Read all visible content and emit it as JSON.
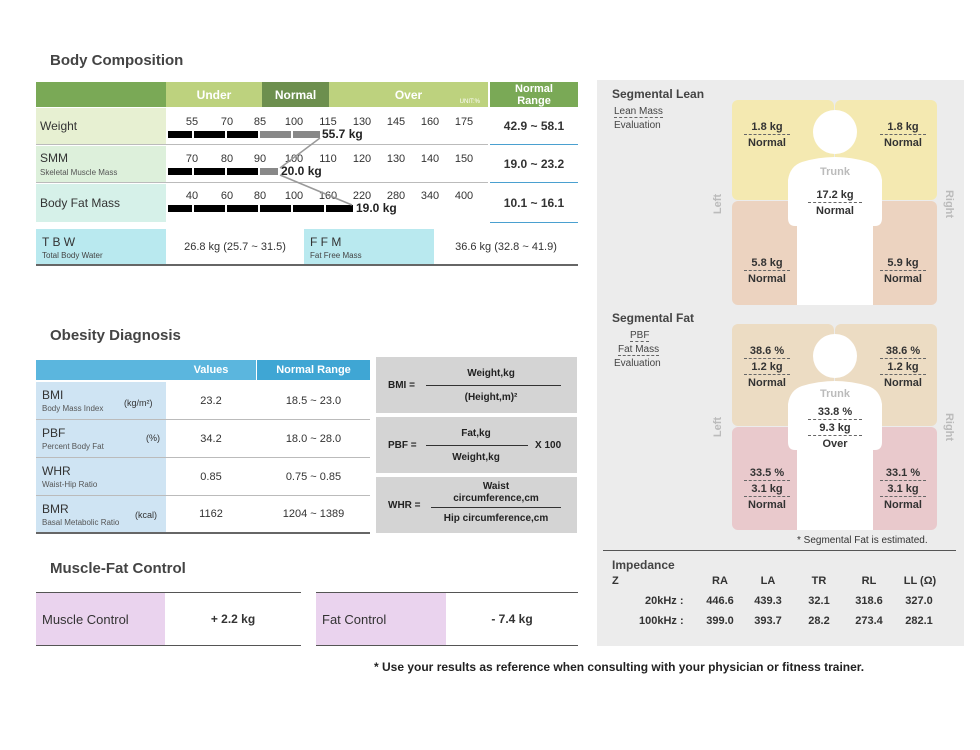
{
  "body_composition": {
    "title": "Body Composition",
    "headers": {
      "under": "Under",
      "normal": "Normal",
      "over": "Over",
      "unit": "UNIT:%",
      "normal_range": "Normal Range"
    },
    "rows": [
      {
        "label": "Weight",
        "sub": "",
        "ticks": [
          "55",
          "70",
          "85",
          "100",
          "115",
          "130",
          "145",
          "160",
          "175"
        ],
        "value": "55.7 kg",
        "range": "42.9 ~ 58.1"
      },
      {
        "label": "SMM",
        "sub": "Skeletal Muscle Mass",
        "ticks": [
          "70",
          "80",
          "90",
          "100",
          "110",
          "120",
          "130",
          "140",
          "150"
        ],
        "value": "20.0 kg",
        "range": "19.0 ~ 23.2"
      },
      {
        "label": "Body Fat Mass",
        "sub": "",
        "ticks": [
          "40",
          "60",
          "80",
          "100",
          "160",
          "220",
          "280",
          "340",
          "400"
        ],
        "value": "19.0 kg",
        "range": "10.1 ~ 16.1"
      }
    ],
    "tbw": {
      "label": "T B W",
      "sub": "Total Body Water",
      "value": "26.8 kg (25.7 ~ 31.5)"
    },
    "ffm": {
      "label": "F F M",
      "sub": "Fat Free Mass",
      "value": "36.6 kg (32.8 ~ 41.9)"
    }
  },
  "obesity": {
    "title": "Obesity Diagnosis",
    "headers": {
      "values": "Values",
      "range": "Normal Range"
    },
    "rows": [
      {
        "label": "BMI",
        "sub": "Body Mass Index",
        "unit": "(kg/m²)",
        "value": "23.2",
        "range": "18.5 ~ 23.0"
      },
      {
        "label": "PBF",
        "sub": "Percent Body Fat",
        "unit": "(%)",
        "value": "34.2",
        "range": "18.0 ~ 28.0"
      },
      {
        "label": "WHR",
        "sub": "Waist-Hip Ratio",
        "unit": "",
        "value": "0.85",
        "range": "0.75 ~ 0.85"
      },
      {
        "label": "BMR",
        "sub": "Basal Metabolic Ratio",
        "unit": "(kcal)",
        "value": "1162",
        "range": "1204 ~ 1389"
      }
    ]
  },
  "formulas": {
    "bmi": {
      "label": "BMI =",
      "num": "Weight,kg",
      "den": "(Height,m)²"
    },
    "pbf": {
      "label": "PBF =",
      "num": "Fat,kg",
      "den": "Weight,kg",
      "mult": "X 100"
    },
    "whr": {
      "label": "WHR =",
      "num1": "Waist",
      "num2": "circumference,cm",
      "den": "Hip circumference,cm"
    }
  },
  "muscle_fat": {
    "title": "Muscle-Fat Control",
    "muscle_label": "Muscle Control",
    "muscle_value": "+ 2.2 kg",
    "fat_label": "Fat Control",
    "fat_value": "- 7.4 kg"
  },
  "segmental_lean": {
    "title": "Segmental Lean",
    "sub1": "Lean Mass",
    "sub2": "Evaluation",
    "left": "Left",
    "right": "Right",
    "trunk": "Trunk",
    "la_val": "1.8 kg",
    "la_eval": "Normal",
    "ra_val": "1.8 kg",
    "ra_eval": "Normal",
    "tr_val": "17.2 kg",
    "tr_eval": "Normal",
    "ll_val": "5.8 kg",
    "ll_eval": "Normal",
    "rl_val": "5.9 kg",
    "rl_eval": "Normal"
  },
  "segmental_fat": {
    "title": "Segmental Fat",
    "sub1": "PBF",
    "sub2": "Fat Mass",
    "sub3": "Evaluation",
    "left": "Left",
    "right": "Right",
    "trunk": "Trunk",
    "la_pbf": "38.6 %",
    "la_val": "1.2 kg",
    "la_eval": "Normal",
    "ra_pbf": "38.6 %",
    "ra_val": "1.2 kg",
    "ra_eval": "Normal",
    "tr_pbf": "33.8 %",
    "tr_val": "9.3 kg",
    "tr_eval": "Over",
    "ll_pbf": "33.5 %",
    "ll_val": "3.1 kg",
    "ll_eval": "Normal",
    "rl_pbf": "33.1 %",
    "rl_val": "3.1 kg",
    "rl_eval": "Normal",
    "note": "* Segmental Fat is estimated."
  },
  "impedance": {
    "title": "Impedance",
    "z": "Z",
    "cols": [
      "RA",
      "LA",
      "TR",
      "RL",
      "LL (Ω)"
    ],
    "rows": [
      {
        "label": "20kHz :",
        "values": [
          "446.6",
          "439.3",
          "32.1",
          "318.6",
          "327.0"
        ]
      },
      {
        "label": "100kHz :",
        "values": [
          "399.0",
          "393.7",
          "28.2",
          "273.4",
          "282.1"
        ]
      }
    ]
  },
  "footer": "* Use your results as reference when consulting with your physician or fitness trainer.",
  "colors": {
    "green_dark": "#7aa956",
    "green_light": "#bdd27e",
    "green_normal": "#6d8f4e",
    "blue_head": "#5bb6de",
    "blue_label": "#cfe4f3",
    "cyan": "#b9e9ef",
    "pink": "#ead3ee",
    "gray_panel": "#ececec",
    "lean_upper": "#f4e9b1",
    "lean_lower": "#ecd3c0",
    "fat_upper": "#ecdcc3",
    "fat_lower": "#e9c9cc"
  }
}
